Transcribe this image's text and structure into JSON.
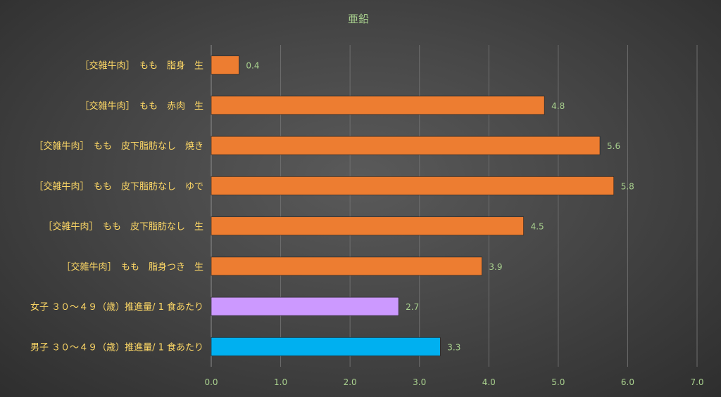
{
  "chart_data": {
    "type": "bar",
    "orientation": "horizontal",
    "title": "亜鉛",
    "categories": [
      "［交雑牛肉］　もも　脂身　生",
      "［交雑牛肉］　もも　赤肉　生",
      "［交雑牛肉］　もも　皮下脂肪なし　焼き",
      "［交雑牛肉］　もも　皮下脂肪なし　ゆで",
      "［交雑牛肉］　もも　皮下脂肪なし　生",
      "［交雑牛肉］　もも　脂身つき　生",
      "女子 ３０～４９（歳）推進量/ 1 食あたり",
      "男子 ３０～４９（歳）推進量/ 1 食あたり"
    ],
    "values": [
      0.4,
      4.8,
      5.6,
      5.8,
      4.5,
      3.9,
      2.7,
      3.3
    ],
    "value_labels": [
      "0.4",
      "4.8",
      "5.6",
      "5.8",
      "4.5",
      "3.9",
      "2.7",
      "3.3"
    ],
    "bar_colors": [
      "#ed7d31",
      "#ed7d31",
      "#ed7d31",
      "#ed7d31",
      "#ed7d31",
      "#ed7d31",
      "#cc99ff",
      "#00b0f0"
    ],
    "xlim": [
      0,
      7
    ],
    "x_ticks": [
      "0.0",
      "1.0",
      "2.0",
      "3.0",
      "4.0",
      "5.0",
      "6.0",
      "7.0"
    ],
    "grid": true,
    "legend": "none",
    "colors": {
      "category_label": "#ffd966",
      "tick_label": "#a9d18e",
      "title": "#a9d18e"
    }
  }
}
